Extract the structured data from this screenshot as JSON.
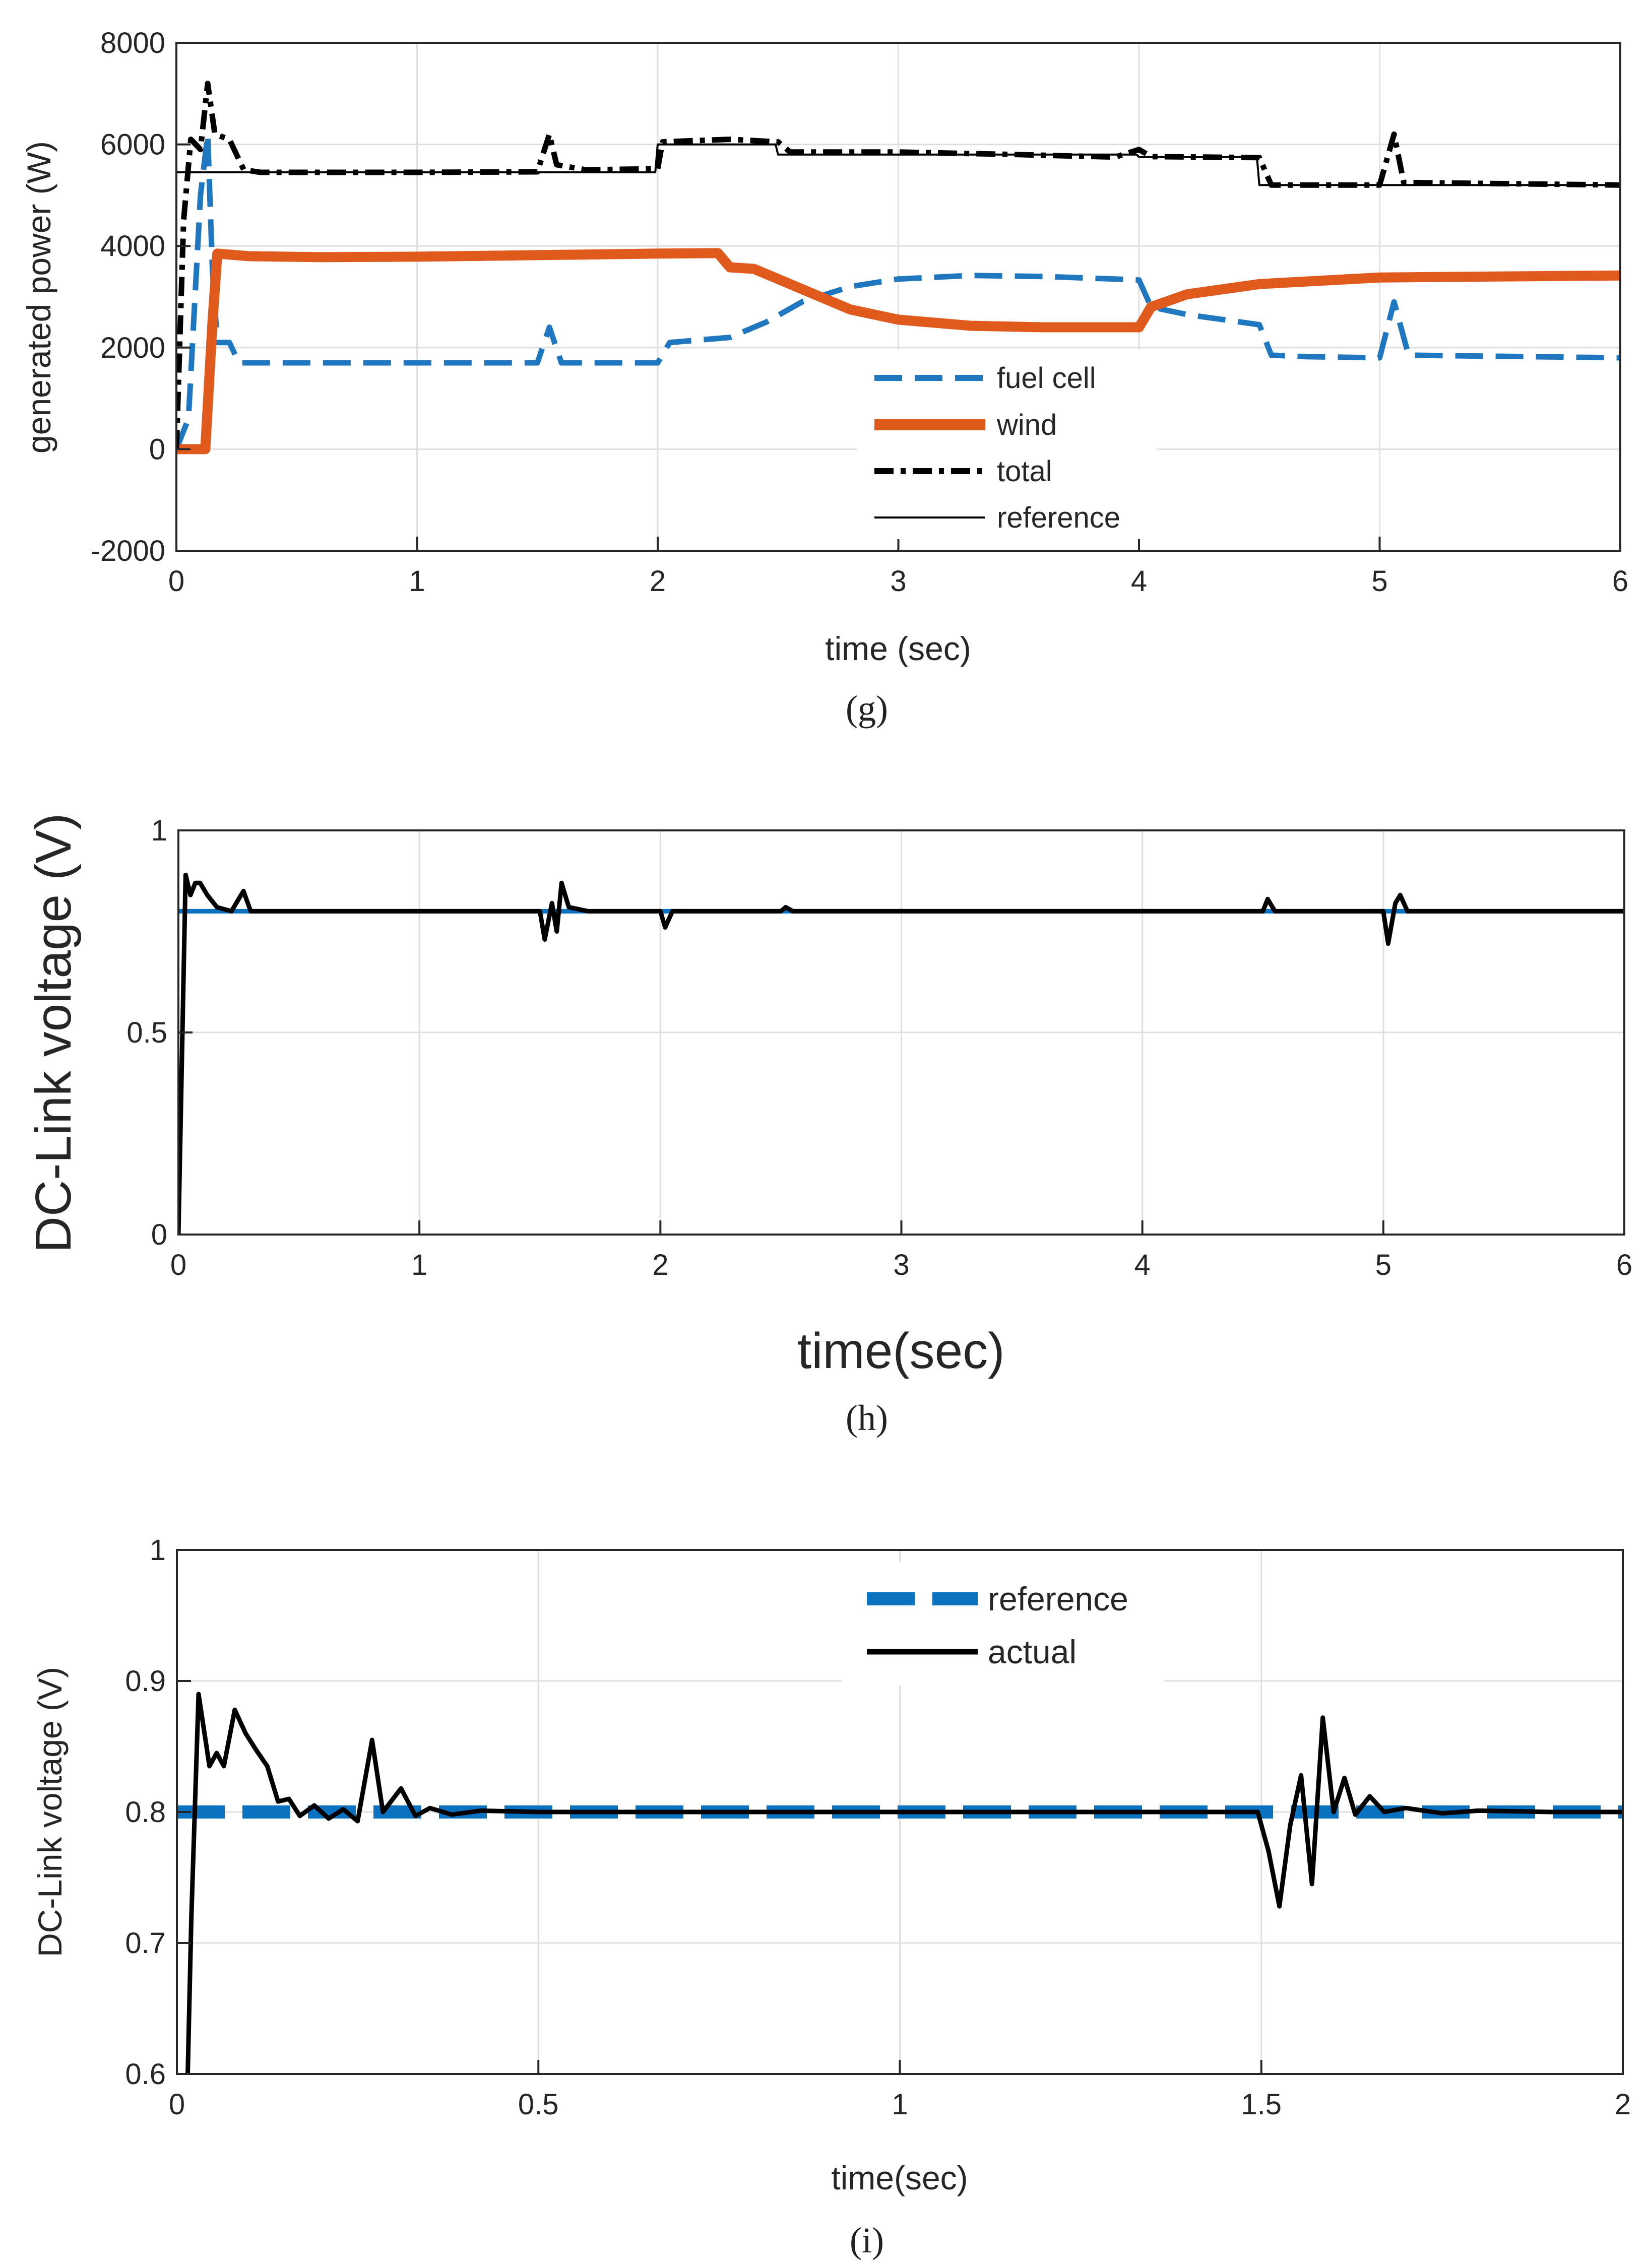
{
  "colors": {
    "fuel_cell": "#1f77c0",
    "wind": "#e05a1e",
    "total": "#000000",
    "reference": "#000000",
    "reference_i": "#0a72c1",
    "actual": "#000000",
    "axis": "#262626",
    "grid": "#dfdfdf"
  },
  "chart_data": [
    {
      "id": "g",
      "type": "line",
      "caption": "(g)",
      "title": "",
      "xlabel": "time (sec)",
      "ylabel": "generated power (W)",
      "xlim": [
        0,
        6
      ],
      "ylim": [
        -2000,
        8000
      ],
      "xticks": [
        "0",
        "1",
        "2",
        "3",
        "4",
        "5",
        "6"
      ],
      "yticks": [
        "-2000",
        "0",
        "2000",
        "4000",
        "6000",
        "8000"
      ],
      "grid": true,
      "legend_position": "bottom-center",
      "series": [
        {
          "name": "fuel cell",
          "style": "dashed",
          "color_key": "fuel_cell",
          "points": [
            [
              0,
              0
            ],
            [
              0.05,
              600
            ],
            [
              0.1,
              5000
            ],
            [
              0.13,
              6200
            ],
            [
              0.15,
              3500
            ],
            [
              0.17,
              2100
            ],
            [
              0.22,
              2100
            ],
            [
              0.26,
              1700
            ],
            [
              0.32,
              1700
            ],
            [
              1.5,
              1700
            ],
            [
              1.55,
              2400
            ],
            [
              1.6,
              1700
            ],
            [
              2.0,
              1700
            ],
            [
              2.05,
              2100
            ],
            [
              2.3,
              2200
            ],
            [
              2.45,
              2500
            ],
            [
              2.6,
              2900
            ],
            [
              2.8,
              3200
            ],
            [
              3.0,
              3350
            ],
            [
              3.3,
              3420
            ],
            [
              3.6,
              3400
            ],
            [
              3.9,
              3350
            ],
            [
              4.0,
              3330
            ],
            [
              4.05,
              2800
            ],
            [
              4.2,
              2650
            ],
            [
              4.5,
              2450
            ],
            [
              4.55,
              1850
            ],
            [
              4.7,
              1820
            ],
            [
              5.0,
              1800
            ],
            [
              5.06,
              2900
            ],
            [
              5.12,
              1850
            ],
            [
              6.0,
              1800
            ]
          ]
        },
        {
          "name": "wind",
          "style": "solid-thick",
          "color_key": "wind",
          "points": [
            [
              0,
              0
            ],
            [
              0.12,
              0
            ],
            [
              0.15,
              2500
            ],
            [
              0.17,
              3850
            ],
            [
              0.3,
              3800
            ],
            [
              0.6,
              3780
            ],
            [
              1.0,
              3790
            ],
            [
              1.5,
              3820
            ],
            [
              2.0,
              3850
            ],
            [
              2.25,
              3860
            ],
            [
              2.3,
              3580
            ],
            [
              2.4,
              3550
            ],
            [
              2.6,
              3150
            ],
            [
              2.8,
              2750
            ],
            [
              3.0,
              2550
            ],
            [
              3.3,
              2430
            ],
            [
              3.6,
              2400
            ],
            [
              4.0,
              2400
            ],
            [
              4.05,
              2800
            ],
            [
              4.2,
              3050
            ],
            [
              4.5,
              3250
            ],
            [
              5.0,
              3380
            ],
            [
              6.0,
              3420
            ]
          ]
        },
        {
          "name": "total",
          "style": "dashdot",
          "color_key": "total",
          "points": [
            [
              0,
              0
            ],
            [
              0.03,
              4500
            ],
            [
              0.06,
              6100
            ],
            [
              0.1,
              5900
            ],
            [
              0.13,
              7200
            ],
            [
              0.16,
              6200
            ],
            [
              0.22,
              6100
            ],
            [
              0.28,
              5500
            ],
            [
              0.35,
              5450
            ],
            [
              1.0,
              5450
            ],
            [
              1.5,
              5460
            ],
            [
              1.55,
              6200
            ],
            [
              1.58,
              5600
            ],
            [
              1.7,
              5500
            ],
            [
              2.0,
              5520
            ],
            [
              2.02,
              6050
            ],
            [
              2.3,
              6100
            ],
            [
              2.5,
              6050
            ],
            [
              2.55,
              5850
            ],
            [
              3.0,
              5850
            ],
            [
              3.5,
              5800
            ],
            [
              3.9,
              5750
            ],
            [
              4.0,
              5900
            ],
            [
              4.05,
              5760
            ],
            [
              4.5,
              5740
            ],
            [
              4.55,
              5200
            ],
            [
              5.0,
              5200
            ],
            [
              5.06,
              6200
            ],
            [
              5.1,
              5250
            ],
            [
              6.0,
              5200
            ]
          ]
        },
        {
          "name": "reference",
          "style": "solid-thin",
          "color_key": "reference",
          "points": [
            [
              0,
              5450
            ],
            [
              1.0,
              5450
            ],
            [
              1.99,
              5450
            ],
            [
              2.0,
              6000
            ],
            [
              2.49,
              6000
            ],
            [
              2.5,
              5800
            ],
            [
              3.99,
              5800
            ],
            [
              4.0,
              5750
            ],
            [
              4.49,
              5750
            ],
            [
              4.5,
              5200
            ],
            [
              6.0,
              5200
            ]
          ]
        }
      ]
    },
    {
      "id": "h",
      "type": "line",
      "caption": "(h)",
      "title": "",
      "xlabel": "time(sec)",
      "ylabel": "DC-Link voltage (V)",
      "xlim": [
        0,
        6
      ],
      "ylim": [
        0,
        1
      ],
      "xticks": [
        "0",
        "1",
        "2",
        "3",
        "4",
        "5",
        "6"
      ],
      "yticks": [
        "0",
        "0.5",
        "1"
      ],
      "grid": true,
      "series": [
        {
          "name": "reference",
          "style": "solid",
          "color_key": "reference_i",
          "points": [
            [
              0,
              0.8
            ],
            [
              6,
              0.8
            ]
          ]
        },
        {
          "name": "actual",
          "style": "solid",
          "color_key": "actual",
          "points": [
            [
              0,
              0
            ],
            [
              0.02,
              0.6
            ],
            [
              0.03,
              0.89
            ],
            [
              0.05,
              0.84
            ],
            [
              0.07,
              0.87
            ],
            [
              0.09,
              0.87
            ],
            [
              0.12,
              0.84
            ],
            [
              0.16,
              0.81
            ],
            [
              0.22,
              0.8
            ],
            [
              0.27,
              0.85
            ],
            [
              0.3,
              0.8
            ],
            [
              0.6,
              0.8
            ],
            [
              1.0,
              0.8
            ],
            [
              1.5,
              0.8
            ],
            [
              1.52,
              0.73
            ],
            [
              1.55,
              0.82
            ],
            [
              1.57,
              0.75
            ],
            [
              1.59,
              0.87
            ],
            [
              1.62,
              0.81
            ],
            [
              1.7,
              0.8
            ],
            [
              2.0,
              0.8
            ],
            [
              2.02,
              0.76
            ],
            [
              2.05,
              0.8
            ],
            [
              2.5,
              0.8
            ],
            [
              2.52,
              0.81
            ],
            [
              2.55,
              0.8
            ],
            [
              4.5,
              0.8
            ],
            [
              4.52,
              0.83
            ],
            [
              4.55,
              0.8
            ],
            [
              5.0,
              0.8
            ],
            [
              5.02,
              0.72
            ],
            [
              5.05,
              0.82
            ],
            [
              5.07,
              0.84
            ],
            [
              5.1,
              0.8
            ],
            [
              6.0,
              0.8
            ]
          ]
        }
      ]
    },
    {
      "id": "i",
      "type": "line",
      "caption": "(i)",
      "title": "",
      "xlabel": "time(sec)",
      "ylabel": "DC-Link voltage (V)",
      "xlim": [
        0,
        2
      ],
      "ylim": [
        0.6,
        1
      ],
      "xticks": [
        "0",
        "0.5",
        "1",
        "1.5",
        "2"
      ],
      "yticks": [
        "0.6",
        "0.7",
        "0.8",
        "0.9",
        "1"
      ],
      "grid": true,
      "legend_position": "top-center",
      "series": [
        {
          "name": "reference",
          "style": "dashed-thick",
          "color_key": "reference_i",
          "points": [
            [
              0,
              0.8
            ],
            [
              2,
              0.8
            ]
          ]
        },
        {
          "name": "actual",
          "style": "solid",
          "color_key": "actual",
          "points": [
            [
              0.015,
              0.6
            ],
            [
              0.02,
              0.72
            ],
            [
              0.03,
              0.89
            ],
            [
              0.045,
              0.835
            ],
            [
              0.055,
              0.845
            ],
            [
              0.065,
              0.835
            ],
            [
              0.08,
              0.878
            ],
            [
              0.095,
              0.86
            ],
            [
              0.11,
              0.847
            ],
            [
              0.125,
              0.835
            ],
            [
              0.14,
              0.808
            ],
            [
              0.155,
              0.81
            ],
            [
              0.17,
              0.797
            ],
            [
              0.19,
              0.805
            ],
            [
              0.21,
              0.795
            ],
            [
              0.23,
              0.802
            ],
            [
              0.25,
              0.793
            ],
            [
              0.27,
              0.855
            ],
            [
              0.285,
              0.8
            ],
            [
              0.31,
              0.818
            ],
            [
              0.33,
              0.797
            ],
            [
              0.35,
              0.803
            ],
            [
              0.38,
              0.798
            ],
            [
              0.42,
              0.801
            ],
            [
              0.5,
              0.8
            ],
            [
              1.0,
              0.8
            ],
            [
              1.495,
              0.8
            ],
            [
              1.51,
              0.77
            ],
            [
              1.525,
              0.728
            ],
            [
              1.54,
              0.79
            ],
            [
              1.555,
              0.828
            ],
            [
              1.57,
              0.745
            ],
            [
              1.585,
              0.872
            ],
            [
              1.6,
              0.8
            ],
            [
              1.615,
              0.826
            ],
            [
              1.63,
              0.798
            ],
            [
              1.65,
              0.812
            ],
            [
              1.67,
              0.8
            ],
            [
              1.7,
              0.803
            ],
            [
              1.75,
              0.799
            ],
            [
              1.8,
              0.801
            ],
            [
              1.9,
              0.8
            ],
            [
              2.0,
              0.8
            ]
          ]
        }
      ]
    }
  ]
}
